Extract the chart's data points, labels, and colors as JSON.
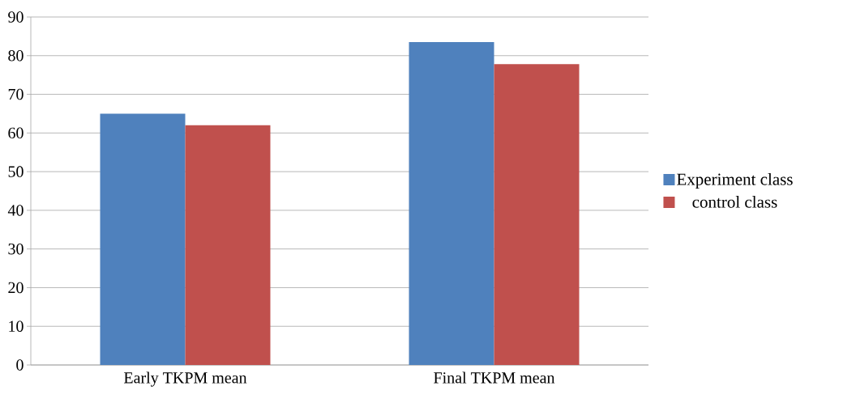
{
  "chart_data": {
    "type": "bar",
    "categories": [
      "Early TKPM mean",
      "Final TKPM mean"
    ],
    "series": [
      {
        "name": "Experiment class",
        "color": "#4f81bd",
        "values": [
          65,
          83.5
        ]
      },
      {
        "name": "control class",
        "color": "#c0504d",
        "values": [
          62,
          77.8
        ]
      }
    ],
    "ylim": [
      0,
      90
    ],
    "yticks": [
      0,
      10,
      20,
      30,
      40,
      50,
      60,
      70,
      80,
      90
    ],
    "grid": "y",
    "legend": "right"
  }
}
